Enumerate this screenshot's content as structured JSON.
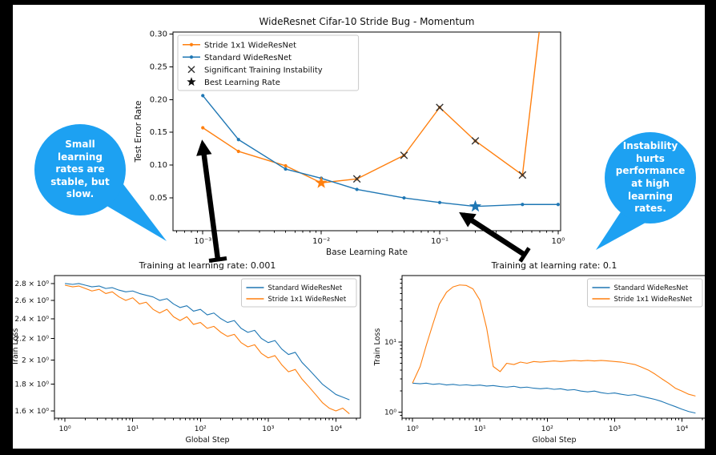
{
  "colors": {
    "orange": "#ff7f0e",
    "blue": "#1f77b4",
    "bubble_blue": "#1da1f2",
    "instability_x": "#333333",
    "legend_star": "#111111"
  },
  "bubbles": {
    "left": {
      "text": "Small learning rates are stable, but slow."
    },
    "right": {
      "text": "Instability hurts performance at high learning rates."
    }
  },
  "chart_data": [
    {
      "id": "top",
      "type": "line",
      "title": "WideResnet Cifar-10 Stride Bug - Momentum",
      "xlabel": "Base Learning Rate",
      "ylabel": "Test Error Rate",
      "xscale": "log",
      "yscale": "linear",
      "xlim": [
        0.00056,
        1.05
      ],
      "ylim": [
        0,
        0.303
      ],
      "xticks": [
        0.001,
        0.01,
        0.1,
        1
      ],
      "xtick_labels": [
        "10⁻³",
        "10⁻²",
        "10⁻¹",
        "10⁰"
      ],
      "yticks": [
        0.05,
        0.1,
        0.15,
        0.2,
        0.25,
        0.3
      ],
      "ytick_labels": [
        "0.05",
        "0.10",
        "0.15",
        "0.20",
        "0.25",
        "0.30"
      ],
      "grid": false,
      "legend_pos": "upper-left",
      "legend": [
        {
          "label": "Stride 1x1 WideResNet",
          "marker": "line-dot",
          "color": "#ff7f0e"
        },
        {
          "label": "Standard WideResNet",
          "marker": "line-dot",
          "color": "#1f77b4"
        },
        {
          "label": "Significant Training Instability",
          "marker": "x",
          "color": "#333333"
        },
        {
          "label": "Best Learning Rate",
          "marker": "star",
          "color": "#111111"
        }
      ],
      "series": [
        {
          "name": "Stride 1x1 WideResNet",
          "color": "#ff7f0e",
          "dots": true,
          "x": [
            0.001,
            0.002,
            0.005,
            0.01,
            0.02,
            0.05,
            0.1,
            0.2,
            0.5,
            1.0
          ],
          "y": [
            0.157,
            0.121,
            0.099,
            0.073,
            0.079,
            0.115,
            0.188,
            0.137,
            0.085,
            0.55
          ]
        },
        {
          "name": "Standard WideResNet",
          "color": "#1f77b4",
          "dots": true,
          "x": [
            0.001,
            0.002,
            0.005,
            0.01,
            0.02,
            0.05,
            0.1,
            0.2,
            0.5,
            1.0
          ],
          "y": [
            0.206,
            0.139,
            0.094,
            0.08,
            0.063,
            0.05,
            0.043,
            0.037,
            0.04,
            0.04
          ]
        }
      ],
      "instability_markers": {
        "color": "#333333",
        "x": [
          0.02,
          0.05,
          0.1,
          0.2,
          0.5
        ],
        "y": [
          0.079,
          0.115,
          0.188,
          0.137,
          0.085
        ]
      },
      "best_learning_rates": [
        {
          "x": 0.01,
          "y": 0.073,
          "color": "#ff7f0e"
        },
        {
          "x": 0.2,
          "y": 0.037,
          "color": "#1f77b4"
        }
      ]
    },
    {
      "id": "bl",
      "type": "line",
      "title": "Training at learning rate: 0.001",
      "xlabel": "Global Step",
      "ylabel": "Train Loss",
      "xscale": "log",
      "yscale": "log",
      "xlim": [
        0.7,
        23000
      ],
      "ylim": [
        1.55,
        2.9
      ],
      "xticks": [
        1,
        10,
        100,
        1000,
        10000
      ],
      "xtick_labels": [
        "10⁰",
        "10¹",
        "10²",
        "10³",
        "10⁴"
      ],
      "yticks": [
        1.6,
        1.8,
        2.0,
        2.2,
        2.4,
        2.6,
        2.8
      ],
      "ytick_labels": [
        "1.6 × 10⁰",
        "1.8 × 10⁰",
        "2 × 10⁰",
        "2.2 × 10⁰",
        "2.4 × 10⁰",
        "2.6 × 10⁰",
        "2.8 × 10⁰"
      ],
      "grid": false,
      "legend_pos": "upper-right",
      "legend": [
        {
          "label": "Standard WideResNet",
          "marker": "line",
          "color": "#1f77b4"
        },
        {
          "label": "Stride 1x1 WideResNet",
          "marker": "line",
          "color": "#ff7f0e"
        }
      ],
      "series": [
        {
          "name": "Standard WideResNet",
          "color": "#1f77b4",
          "dots": false,
          "x": [
            1,
            1.3,
            1.6,
            2,
            2.5,
            3.2,
            4,
            5,
            6.3,
            7.9,
            10,
            12.6,
            15.8,
            20,
            25,
            32,
            40,
            50,
            63,
            79,
            100,
            126,
            158,
            200,
            251,
            316,
            398,
            501,
            631,
            794,
            1000,
            1259,
            1585,
            1995,
            2512,
            3162,
            3981,
            5012,
            6310,
            7943,
            10000,
            12589,
            15849
          ],
          "y": [
            2.8,
            2.79,
            2.8,
            2.78,
            2.76,
            2.77,
            2.74,
            2.75,
            2.72,
            2.7,
            2.71,
            2.68,
            2.66,
            2.64,
            2.6,
            2.62,
            2.56,
            2.52,
            2.54,
            2.48,
            2.5,
            2.44,
            2.46,
            2.4,
            2.36,
            2.38,
            2.3,
            2.26,
            2.28,
            2.2,
            2.16,
            2.18,
            2.1,
            2.05,
            2.07,
            1.98,
            1.92,
            1.86,
            1.8,
            1.76,
            1.72,
            1.7,
            1.68
          ]
        },
        {
          "name": "Stride 1x1 WideResNet",
          "color": "#ff7f0e",
          "dots": false,
          "x": [
            1,
            1.3,
            1.6,
            2,
            2.5,
            3.2,
            4,
            5,
            6.3,
            7.9,
            10,
            12.6,
            15.8,
            20,
            25,
            32,
            40,
            50,
            63,
            79,
            100,
            126,
            158,
            200,
            251,
            316,
            398,
            501,
            631,
            794,
            1000,
            1259,
            1585,
            1995,
            2512,
            3162,
            3981,
            5012,
            6310,
            7943,
            10000,
            12589,
            15849
          ],
          "y": [
            2.78,
            2.76,
            2.77,
            2.74,
            2.71,
            2.73,
            2.68,
            2.7,
            2.64,
            2.6,
            2.63,
            2.56,
            2.58,
            2.5,
            2.46,
            2.5,
            2.42,
            2.38,
            2.42,
            2.34,
            2.36,
            2.3,
            2.32,
            2.26,
            2.22,
            2.24,
            2.16,
            2.12,
            2.14,
            2.06,
            2.02,
            2.04,
            1.96,
            1.9,
            1.92,
            1.84,
            1.78,
            1.72,
            1.66,
            1.62,
            1.6,
            1.62,
            1.58
          ]
        }
      ]
    },
    {
      "id": "br",
      "type": "line",
      "title": "Training at learning rate: 0.1",
      "xlabel": "Global Step",
      "ylabel": "Train Loss",
      "xscale": "log",
      "yscale": "log",
      "y_minor": true,
      "xlim": [
        0.7,
        23000
      ],
      "ylim": [
        0.82,
        90
      ],
      "xticks": [
        1,
        10,
        100,
        1000,
        10000
      ],
      "xtick_labels": [
        "10⁰",
        "10¹",
        "10²",
        "10³",
        "10⁴"
      ],
      "yticks": [
        1,
        10
      ],
      "ytick_labels": [
        "10⁰",
        "10¹"
      ],
      "grid": false,
      "legend_pos": "upper-right",
      "legend": [
        {
          "label": "Standard WideResNet",
          "marker": "line",
          "color": "#1f77b4"
        },
        {
          "label": "Stride 1x1 WideResNet",
          "marker": "line",
          "color": "#ff7f0e"
        }
      ],
      "series": [
        {
          "name": "Standard WideResNet",
          "color": "#1f77b4",
          "dots": false,
          "x": [
            1,
            1.3,
            1.6,
            2,
            2.5,
            3.2,
            4,
            5,
            6.3,
            7.9,
            10,
            12.6,
            15.8,
            20,
            25,
            32,
            40,
            50,
            63,
            79,
            100,
            126,
            158,
            200,
            251,
            316,
            398,
            501,
            631,
            794,
            1000,
            1259,
            1585,
            1995,
            2512,
            3162,
            3981,
            5012,
            6310,
            7943,
            10000,
            12589,
            15849
          ],
          "y": [
            2.6,
            2.55,
            2.6,
            2.5,
            2.55,
            2.45,
            2.5,
            2.42,
            2.46,
            2.4,
            2.44,
            2.36,
            2.4,
            2.32,
            2.28,
            2.34,
            2.24,
            2.28,
            2.2,
            2.16,
            2.2,
            2.12,
            2.16,
            2.06,
            2.1,
            2.0,
            1.95,
            2.0,
            1.9,
            1.84,
            1.88,
            1.8,
            1.74,
            1.78,
            1.68,
            1.6,
            1.52,
            1.42,
            1.3,
            1.2,
            1.1,
            1.02,
            0.97
          ]
        },
        {
          "name": "Stride 1x1 WideResNet",
          "color": "#ff7f0e",
          "dots": false,
          "x": [
            1,
            1.3,
            1.6,
            2,
            2.5,
            3.2,
            4,
            5,
            6.3,
            7.9,
            10,
            12.6,
            15.8,
            20,
            25,
            32,
            40,
            50,
            63,
            79,
            100,
            126,
            158,
            200,
            251,
            316,
            398,
            501,
            631,
            794,
            1000,
            1259,
            1585,
            1995,
            2512,
            3162,
            3981,
            5012,
            6310,
            7943,
            10000,
            12589,
            15849
          ],
          "y": [
            2.6,
            4.5,
            9,
            18,
            35,
            52,
            62,
            66,
            65,
            58,
            40,
            16,
            4.5,
            3.8,
            5.0,
            4.8,
            5.2,
            5.0,
            5.3,
            5.2,
            5.3,
            5.4,
            5.3,
            5.4,
            5.5,
            5.4,
            5.5,
            5.4,
            5.5,
            5.4,
            5.3,
            5.2,
            5.0,
            4.8,
            4.4,
            4.0,
            3.5,
            3.0,
            2.6,
            2.2,
            2.0,
            1.8,
            1.7
          ]
        }
      ]
    }
  ]
}
